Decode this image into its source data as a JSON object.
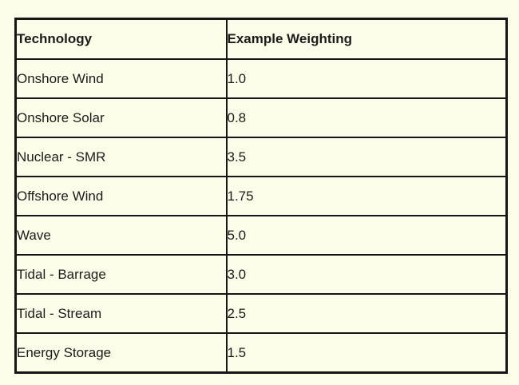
{
  "table": {
    "headers": {
      "technology": "Technology",
      "weighting": "Example Weighting"
    },
    "rows": [
      {
        "technology": "Onshore Wind",
        "weighting": "1.0"
      },
      {
        "technology": "Onshore Solar",
        "weighting": "0.8"
      },
      {
        "technology": "Nuclear - SMR",
        "weighting": "3.5"
      },
      {
        "technology": "Offshore Wind",
        "weighting": "1.75"
      },
      {
        "technology": "Wave",
        "weighting": "5.0"
      },
      {
        "technology": "Tidal - Barrage",
        "weighting": "3.0"
      },
      {
        "technology": "Tidal - Stream",
        "weighting": "2.5"
      },
      {
        "technology": "Energy Storage",
        "weighting": "1.5"
      }
    ],
    "colors": {
      "background": "#FCFCE8",
      "border": "#161616",
      "text": "#1c1c1c"
    }
  }
}
